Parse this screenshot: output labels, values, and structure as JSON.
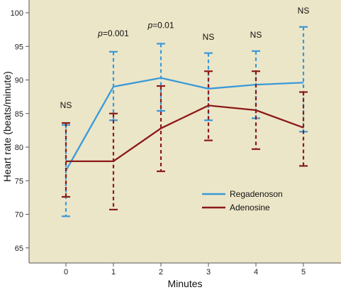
{
  "chart_data": {
    "type": "line",
    "xlabel": "Minutes",
    "ylabel": "Heart rate (beats/minute)",
    "x": [
      0,
      1,
      2,
      3,
      4,
      5
    ],
    "xlim": [
      -1,
      5.75
    ],
    "ylim": [
      62,
      102
    ],
    "yticks": [
      65,
      70,
      75,
      80,
      85,
      90,
      95,
      100
    ],
    "xticks": [
      0,
      1,
      2,
      3,
      4,
      5
    ],
    "plot_background": "#ece6c8",
    "legend_position": "lower-right",
    "series": [
      {
        "name": "Regadenoson",
        "color": "#3a9ad9",
        "values": [
          76.5,
          89.0,
          90.3,
          88.7,
          89.3,
          89.6
        ],
        "err_low": [
          69.7,
          84.0,
          85.4,
          84.0,
          84.3,
          82.3
        ],
        "err_high": [
          83.3,
          94.2,
          95.4,
          94.0,
          94.3,
          97.9
        ]
      },
      {
        "name": "Adenosine",
        "color": "#8b1a1a",
        "values": [
          77.9,
          77.9,
          82.8,
          86.2,
          85.5,
          82.9
        ],
        "err_low": [
          72.6,
          70.7,
          76.4,
          81.0,
          79.7,
          77.2
        ],
        "err_high": [
          83.6,
          85.0,
          89.1,
          91.3,
          91.3,
          88.2
        ]
      }
    ],
    "annotations": [
      {
        "x": 0,
        "y": 85.8,
        "text": "NS"
      },
      {
        "x": 1,
        "y": 96.5,
        "text": "p=0.001"
      },
      {
        "x": 2,
        "y": 97.7,
        "text": "p=0.01"
      },
      {
        "x": 3,
        "y": 96.0,
        "text": "NS"
      },
      {
        "x": 4,
        "y": 96.3,
        "text": "NS"
      },
      {
        "x": 5,
        "y": 99.9,
        "text": "NS"
      }
    ]
  }
}
